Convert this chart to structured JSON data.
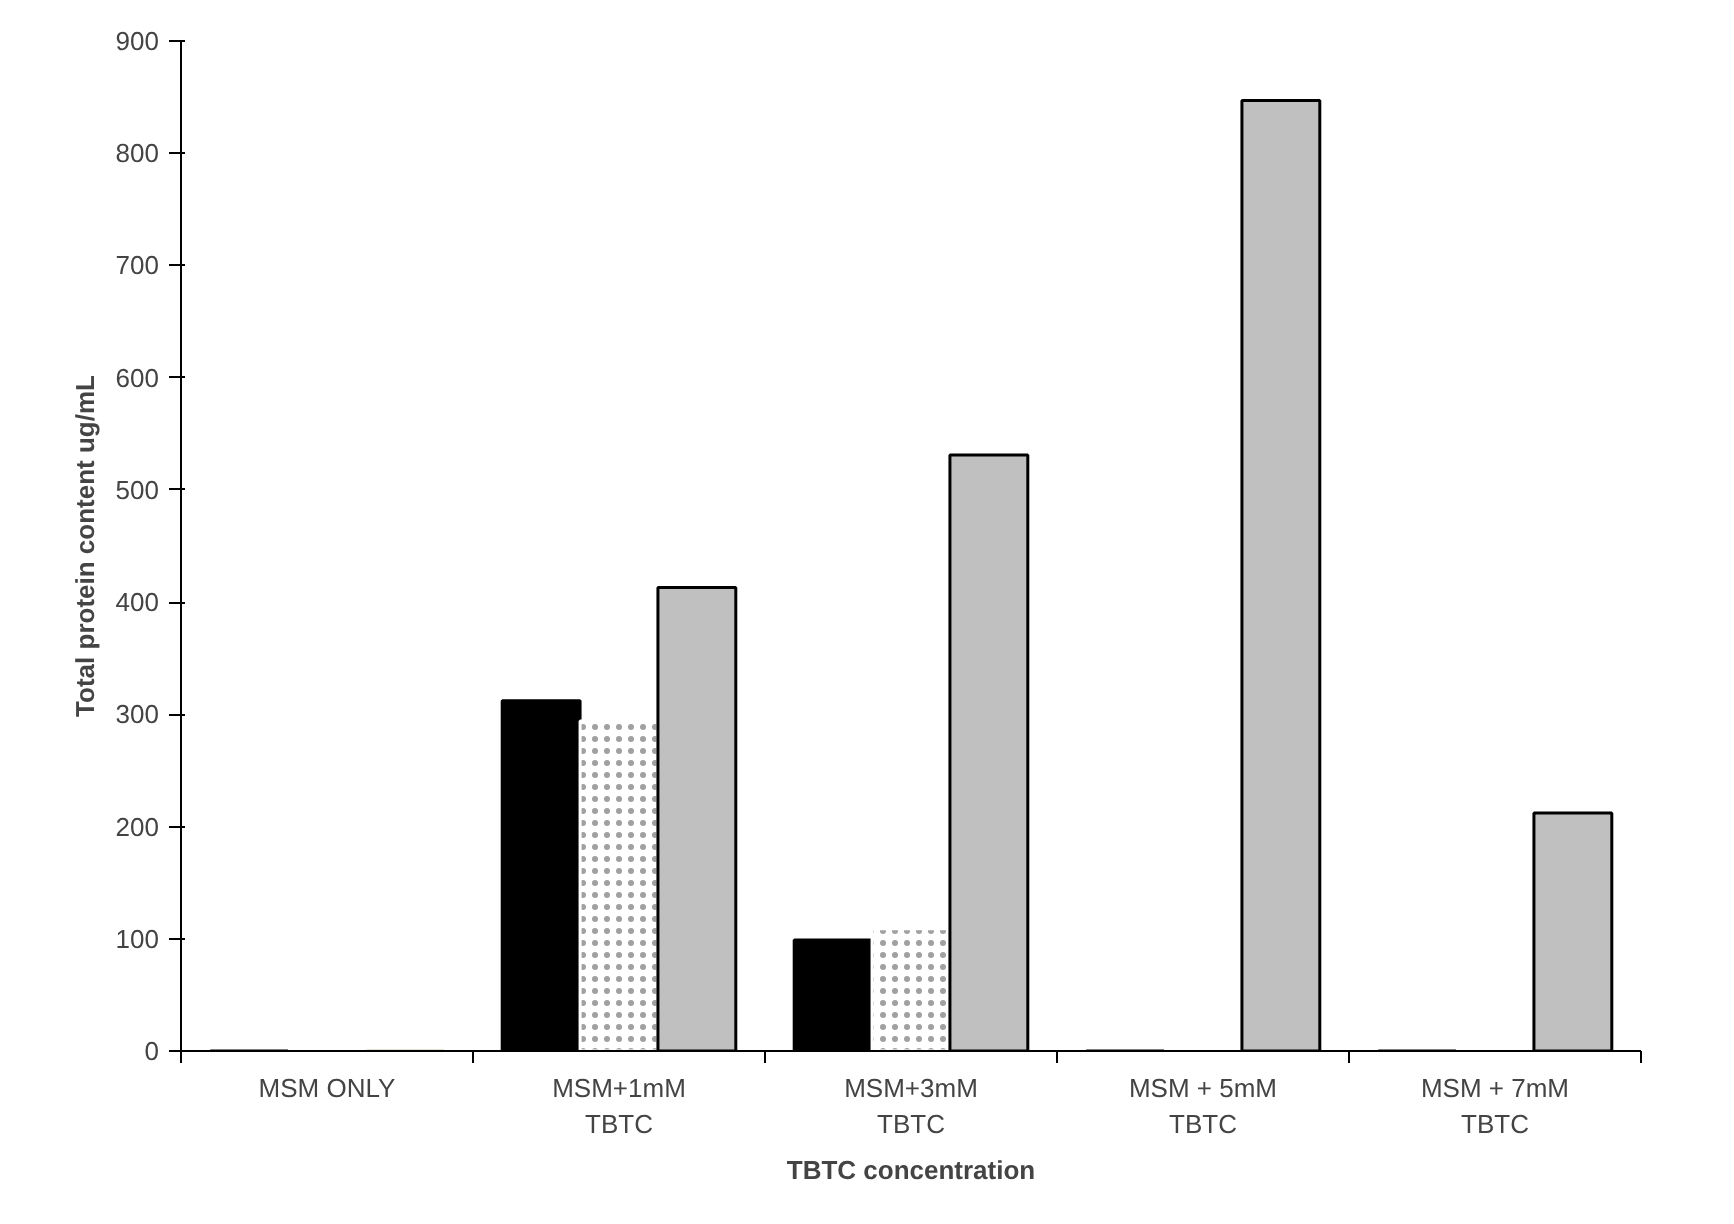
{
  "chart_data": {
    "type": "bar",
    "xlabel": "TBTC concentration",
    "ylabel": "Total protein content ug/mL",
    "categories": [
      "MSM ONLY",
      "MSM+1mM TBTC",
      "MSM+3mM TBTC",
      "MSM + 5mM TBTC",
      "MSM + 7mM TBTC"
    ],
    "series": [
      {
        "color": "#000000",
        "values": [
          0,
          312,
          99,
          0,
          0
        ]
      },
      {
        "color": "#ffffff",
        "values": [
          0,
          294,
          109,
          0,
          0
        ]
      },
      {
        "color": "#c0c0c0",
        "colors": [
          "#c8c8a0",
          "#c0c0c0",
          "#c0c0c0",
          "#c0c0c0",
          "#c0c0c0"
        ],
        "values": [
          0,
          413,
          531,
          847,
          212
        ]
      }
    ],
    "ylim": [
      0,
      900
    ],
    "yticks": [
      0,
      100,
      200,
      300,
      400,
      500,
      600,
      700,
      800,
      900
    ],
    "grid": false
  }
}
